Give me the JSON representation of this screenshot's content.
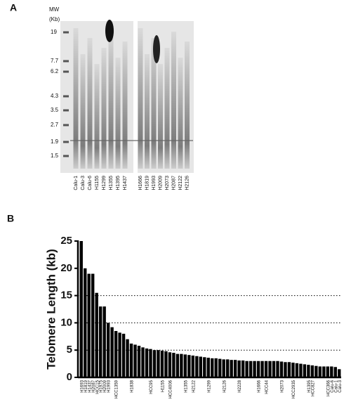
{
  "gel": {
    "panel_label": "A",
    "mw_title": "MW",
    "mw_unit": "(Kb)",
    "mw_labels": [
      "19",
      "7.7",
      "6.2",
      "4.3",
      "3.5",
      "2.7",
      "1.9",
      "1.5"
    ],
    "lanes_left": [
      "Calu-1",
      "Calu-3",
      "Calu-6",
      "H1155",
      "H1299",
      "H1355",
      "H1395",
      "H1437"
    ],
    "lanes_right": [
      "H1666",
      "H1819",
      "H1993",
      "H2009",
      "H2073",
      "H2087",
      "H2122",
      "H2126"
    ]
  },
  "chart_data": {
    "type": "bar",
    "panel_label": "B",
    "y_label": "Telomere Length (kb)",
    "categories": [
      "H1693",
      "H1819",
      "H1437",
      "H2087",
      "HCC15",
      "H1975",
      "H2009",
      "H1993",
      null,
      "HCC1359",
      null,
      null,
      null,
      "H1838",
      null,
      null,
      null,
      null,
      "HCC95",
      null,
      null,
      "H1155",
      null,
      "HCC4006",
      null,
      null,
      null,
      "H1355",
      null,
      "H2122",
      null,
      null,
      null,
      "H1299",
      null,
      null,
      null,
      "H2126",
      null,
      null,
      null,
      "H2228",
      null,
      null,
      null,
      null,
      "H1666",
      null,
      "HCC44",
      null,
      null,
      null,
      "H2073",
      null,
      null,
      "HCC2935",
      null,
      null,
      null,
      "H1395",
      "HCC827",
      null,
      null,
      null,
      "HCC366",
      "Calu-6",
      "Calu-1",
      "Calu-3"
    ],
    "values": [
      25,
      20,
      19,
      19,
      15.5,
      13,
      13,
      10,
      9.2,
      8.5,
      8.2,
      8,
      7,
      6.2,
      6,
      5.8,
      5.5,
      5.3,
      5.2,
      5,
      5,
      4.9,
      4.8,
      4.6,
      4.5,
      4.3,
      4.3,
      4.2,
      4.1,
      4,
      3.9,
      3.8,
      3.7,
      3.6,
      3.5,
      3.5,
      3.4,
      3.3,
      3.3,
      3.2,
      3.2,
      3.1,
      3.1,
      3,
      3,
      3,
      3,
      3,
      3,
      3,
      3,
      3,
      2.9,
      2.8,
      2.8,
      2.7,
      2.6,
      2.5,
      2.4,
      2.3,
      2.2,
      2.1,
      2,
      2,
      2,
      2,
      1.9,
      1.5
    ],
    "color": "#000000",
    "ylim": [
      0,
      25
    ],
    "yticks": [
      0,
      5,
      10,
      15,
      20,
      25
    ],
    "dotted_grid": [
      5,
      10,
      15
    ]
  }
}
